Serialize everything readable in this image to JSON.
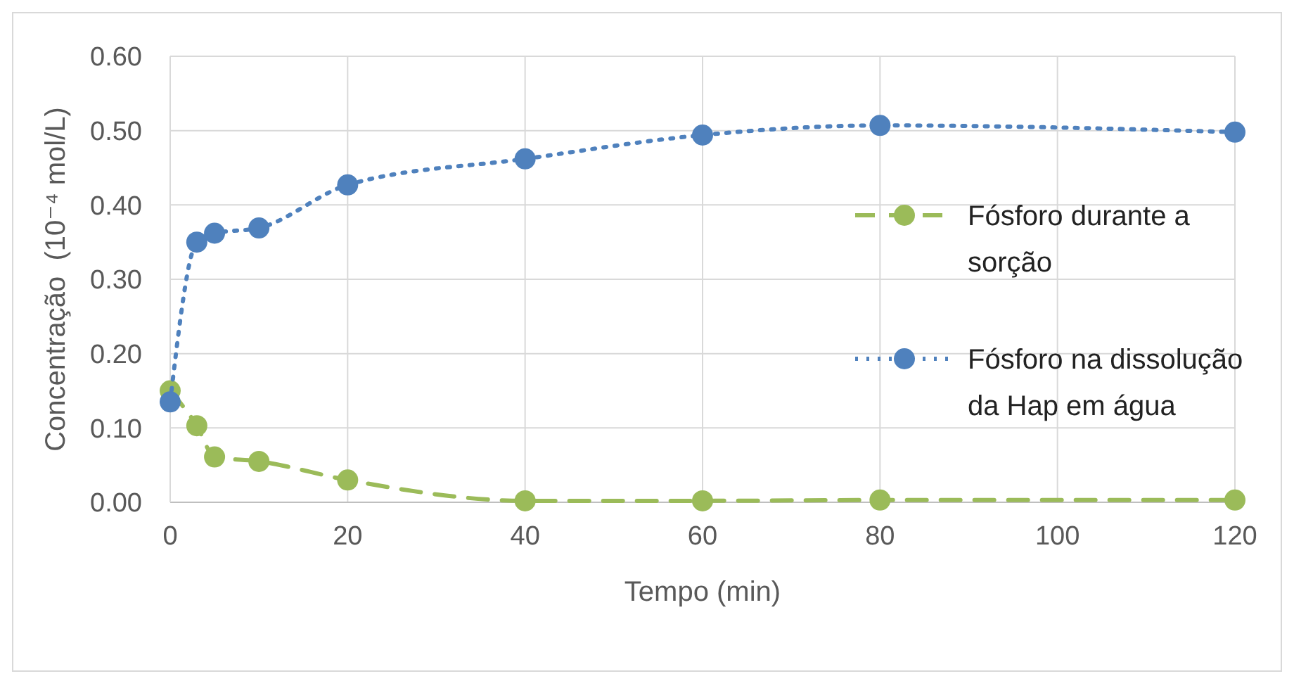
{
  "chart_data": {
    "type": "line",
    "xlabel": "Tempo (min)",
    "ylabel": "Concentração  (10⁻⁴ mol/L)",
    "xlim": [
      0,
      120
    ],
    "xticks": [
      0,
      20,
      40,
      60,
      80,
      100,
      120
    ],
    "ylim": [
      0,
      0.6
    ],
    "yticks": [
      {
        "value": 0,
        "label": "0.00"
      },
      {
        "value": 0.1,
        "label": "0.10"
      },
      {
        "value": 0.2,
        "label": "0.20"
      },
      {
        "value": 0.3,
        "label": "0.30"
      },
      {
        "value": 0.4,
        "label": "0.40"
      },
      {
        "value": 0.5,
        "label": "0.50"
      },
      {
        "value": 0.6,
        "label": "0.60"
      }
    ],
    "grid": true,
    "legend": "right",
    "marker": "circle",
    "x": [
      0,
      3,
      5,
      10,
      20,
      40,
      60,
      80,
      120
    ],
    "series": [
      {
        "name": "Fósforo durante a sorção",
        "color": "#9bbb59",
        "line_style": "dashed",
        "values": [
          0.15,
          0.103,
          0.061,
          0.055,
          0.03,
          0.002,
          0.002,
          0.003,
          0.003
        ]
      },
      {
        "name": "Fósforo na dissolução da Hap em água",
        "color": "#4f81bd",
        "line_style": "dotted",
        "values": [
          0.135,
          0.35,
          0.362,
          0.369,
          0.427,
          0.462,
          0.494,
          0.507,
          0.498
        ]
      }
    ]
  }
}
